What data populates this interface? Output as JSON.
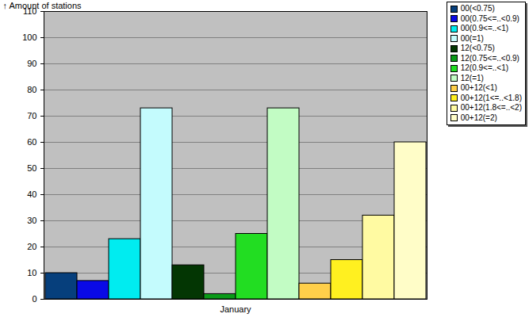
{
  "chart_data": {
    "type": "bar",
    "categories": [
      "January"
    ],
    "series": [
      {
        "name": "00(<0.75)",
        "color": "#063f7c",
        "values": [
          10
        ]
      },
      {
        "name": "00(0.75<=..<0.9)",
        "color": "#0a0ae6",
        "values": [
          7
        ]
      },
      {
        "name": "00(0.9<=..<1)",
        "color": "#00ecf0",
        "values": [
          23
        ]
      },
      {
        "name": "00(=1)",
        "color": "#c4fbfd",
        "values": [
          73
        ]
      },
      {
        "name": "12(<0.75)",
        "color": "#033603",
        "values": [
          13
        ]
      },
      {
        "name": "12(0.75<=..<0.9)",
        "color": "#0a9a18",
        "values": [
          2
        ]
      },
      {
        "name": "12(0.9<=..<1)",
        "color": "#22dd22",
        "values": [
          25
        ]
      },
      {
        "name": "12(=1)",
        "color": "#c2fcc4",
        "values": [
          73
        ]
      },
      {
        "name": "00+12(<1)",
        "color": "#ffcf4a",
        "values": [
          6
        ]
      },
      {
        "name": "00+12(1<=..<1.8)",
        "color": "#fff020",
        "values": [
          15
        ]
      },
      {
        "name": "00+12(1.8<=..<2)",
        "color": "#fffaa2",
        "values": [
          32
        ]
      },
      {
        "name": "00+12(=2)",
        "color": "#fffdc8",
        "values": [
          60
        ]
      }
    ],
    "y_label": "Amount of stations",
    "ylim": [
      0,
      110
    ],
    "yticks": [
      0,
      10,
      20,
      30,
      40,
      50,
      60,
      70,
      80,
      90,
      100,
      110
    ],
    "grid": true,
    "legend": "top-right"
  }
}
